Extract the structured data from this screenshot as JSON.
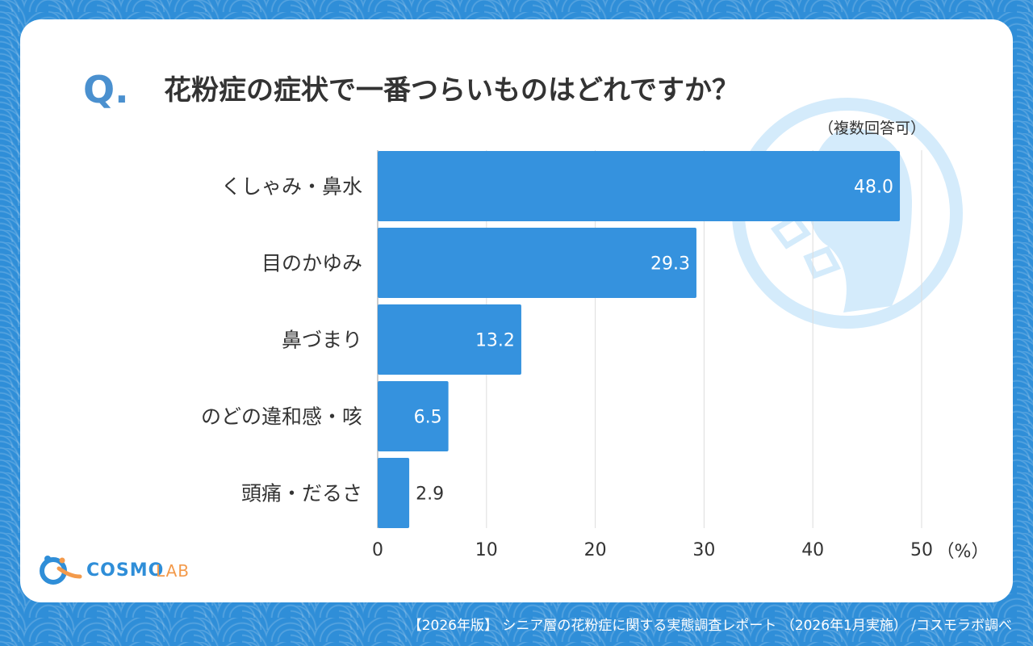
{
  "question_mark": "Q.",
  "title": "花粉症の症状で一番つらいものはどれですか？",
  "subtitle": "（複数回答可）",
  "chart_data": {
    "type": "bar",
    "orientation": "horizontal",
    "categories": [
      "くしゃみ・鼻水",
      "目のかゆみ",
      "鼻づまり",
      "のどの違和感・咳",
      "頭痛・だるさ"
    ],
    "values": [
      48.0,
      29.3,
      13.2,
      6.5,
      2.9
    ],
    "value_labels": [
      "48.0",
      "29.3",
      "13.2",
      "6.5",
      "2.9"
    ],
    "xlim": [
      0,
      50
    ],
    "xticks": [
      "0",
      "10",
      "20",
      "30",
      "40",
      "50"
    ],
    "xticks_values": [
      0,
      10,
      20,
      30,
      40,
      50
    ],
    "unit": "（%）",
    "grid": true,
    "bar_color": "#3592de"
  },
  "logo": {
    "text_cosmo": "COSMO",
    "text_lab": "LAB",
    "colors": {
      "cosmo": "#2f8ed8",
      "lab": "#f39a4b"
    }
  },
  "footer": "【2026年版】 シニア層の花粉症に関する実態調査レポート （2026年1月実施） /コスモラボ調べ",
  "colors": {
    "background": "#2f8ed8",
    "card": "#ffffff",
    "text": "#333333",
    "accent": "#4a90cf"
  }
}
